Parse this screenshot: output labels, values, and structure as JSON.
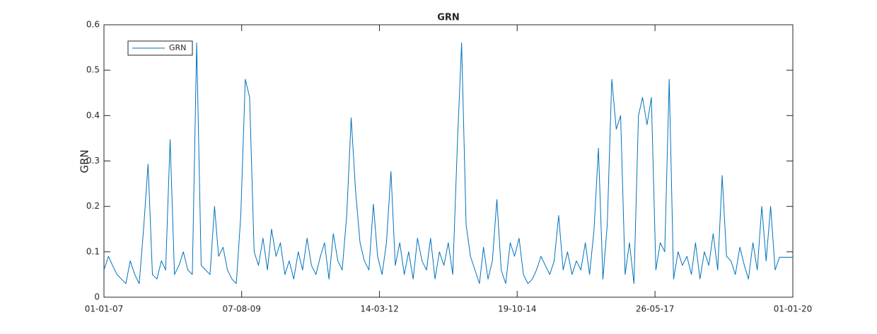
{
  "chart_data": {
    "type": "line",
    "title": "GRN",
    "ylabel": "GRN",
    "x": [
      "01-01-07",
      "01-02-07",
      "01-03-07",
      "01-04-07",
      "01-05-07",
      "01-06-07",
      "01-07-07",
      "01-08-07",
      "01-09-07",
      "01-10-07",
      "01-11-07",
      "01-12-07",
      "01-01-08",
      "01-02-08",
      "01-03-08",
      "01-04-08",
      "01-05-08",
      "01-06-08",
      "01-07-08",
      "01-08-08",
      "01-09-08",
      "01-10-08",
      "01-11-08",
      "01-12-08",
      "01-01-09",
      "01-02-09",
      "01-03-09",
      "01-04-09",
      "01-05-09",
      "01-06-09",
      "01-07-09",
      "01-08-09",
      "01-09-09",
      "01-10-09",
      "01-11-09",
      "01-12-09",
      "01-01-10",
      "01-02-10",
      "01-03-10",
      "01-04-10",
      "01-05-10",
      "01-06-10",
      "01-07-10",
      "01-08-10",
      "01-09-10",
      "01-10-10",
      "01-11-10",
      "01-12-10",
      "01-01-11",
      "01-02-11",
      "01-03-11",
      "01-04-11",
      "01-05-11",
      "01-06-11",
      "01-07-11",
      "01-08-11",
      "01-09-11",
      "01-10-11",
      "01-11-11",
      "01-12-11",
      "01-01-12",
      "01-02-12",
      "01-03-12",
      "01-04-12",
      "01-05-12",
      "01-06-12",
      "01-07-12",
      "01-08-12",
      "01-09-12",
      "01-10-12",
      "01-11-12",
      "01-12-12",
      "01-01-13",
      "01-02-13",
      "01-03-13",
      "01-04-13",
      "01-05-13",
      "01-06-13",
      "01-07-13",
      "01-08-13",
      "01-09-13",
      "01-10-13",
      "01-11-13",
      "01-12-13",
      "01-01-14",
      "01-02-14",
      "01-03-14",
      "01-04-14",
      "01-05-14",
      "01-06-14",
      "01-07-14",
      "01-08-14",
      "01-09-14",
      "01-10-14",
      "01-11-14",
      "01-12-14",
      "01-01-15",
      "01-02-15",
      "01-03-15",
      "01-04-15",
      "01-05-15",
      "01-06-15",
      "01-07-15",
      "01-08-15",
      "01-09-15",
      "01-10-15",
      "01-11-15",
      "01-12-15",
      "01-01-16",
      "01-02-16",
      "01-03-16",
      "01-04-16",
      "01-05-16",
      "01-06-16",
      "01-07-16",
      "01-08-16",
      "01-09-16",
      "01-10-16",
      "01-11-16",
      "01-12-16",
      "01-01-17",
      "01-02-17",
      "01-03-17",
      "01-04-17",
      "01-05-17",
      "01-06-17",
      "01-07-17",
      "01-08-17",
      "01-09-17",
      "01-10-17",
      "01-11-17",
      "01-12-17",
      "01-01-18",
      "01-02-18",
      "01-03-18",
      "01-04-18",
      "01-05-18",
      "01-06-18",
      "01-07-18",
      "01-08-18",
      "01-09-18",
      "01-10-18",
      "01-11-18",
      "01-12-18",
      "01-01-19",
      "01-02-19",
      "01-03-19",
      "01-04-19",
      "01-05-19",
      "01-06-19",
      "01-07-19",
      "01-08-19",
      "01-09-19",
      "01-10-19",
      "01-11-19",
      "01-12-19",
      "01-01-20"
    ],
    "series": [
      {
        "name": "GRN",
        "color": "#0072bd",
        "values": [
          0.06,
          0.09,
          0.07,
          0.05,
          0.04,
          0.03,
          0.08,
          0.05,
          0.03,
          0.15,
          0.293,
          0.05,
          0.04,
          0.08,
          0.06,
          0.347,
          0.05,
          0.07,
          0.1,
          0.06,
          0.05,
          0.56,
          0.07,
          0.06,
          0.05,
          0.2,
          0.09,
          0.11,
          0.06,
          0.04,
          0.03,
          0.18,
          0.48,
          0.44,
          0.1,
          0.07,
          0.13,
          0.06,
          0.15,
          0.09,
          0.12,
          0.05,
          0.08,
          0.04,
          0.1,
          0.06,
          0.13,
          0.07,
          0.05,
          0.09,
          0.12,
          0.04,
          0.14,
          0.08,
          0.06,
          0.18,
          0.395,
          0.235,
          0.12,
          0.08,
          0.06,
          0.205,
          0.09,
          0.05,
          0.12,
          0.277,
          0.07,
          0.12,
          0.05,
          0.1,
          0.04,
          0.13,
          0.08,
          0.06,
          0.13,
          0.04,
          0.1,
          0.07,
          0.12,
          0.05,
          0.33,
          0.56,
          0.16,
          0.09,
          0.06,
          0.03,
          0.11,
          0.04,
          0.08,
          0.215,
          0.06,
          0.03,
          0.12,
          0.09,
          0.13,
          0.05,
          0.03,
          0.04,
          0.06,
          0.09,
          0.07,
          0.05,
          0.08,
          0.18,
          0.06,
          0.1,
          0.05,
          0.08,
          0.06,
          0.12,
          0.05,
          0.15,
          0.328,
          0.04,
          0.16,
          0.48,
          0.37,
          0.4,
          0.05,
          0.12,
          0.03,
          0.4,
          0.44,
          0.38,
          0.44,
          0.06,
          0.12,
          0.1,
          0.48,
          0.04,
          0.1,
          0.07,
          0.09,
          0.05,
          0.12,
          0.04,
          0.1,
          0.07,
          0.14,
          0.06,
          0.268,
          0.09,
          0.08,
          0.05,
          0.11,
          0.07,
          0.04,
          0.12,
          0.06,
          0.2,
          0.08,
          0.2,
          0.06,
          0.088,
          0.088,
          0.088,
          0.088
        ]
      }
    ],
    "xlim": [
      "01-01-07",
      "01-01-20"
    ],
    "xticks": [
      "01-01-07",
      "07-08-09",
      "14-03-12",
      "19-10-14",
      "26-05-17",
      "01-01-20"
    ],
    "ylim": [
      0,
      0.6
    ],
    "yticks": [
      0,
      0.1,
      0.2,
      0.3,
      0.4,
      0.5,
      0.6
    ],
    "grid": false,
    "legend": "northwest"
  }
}
